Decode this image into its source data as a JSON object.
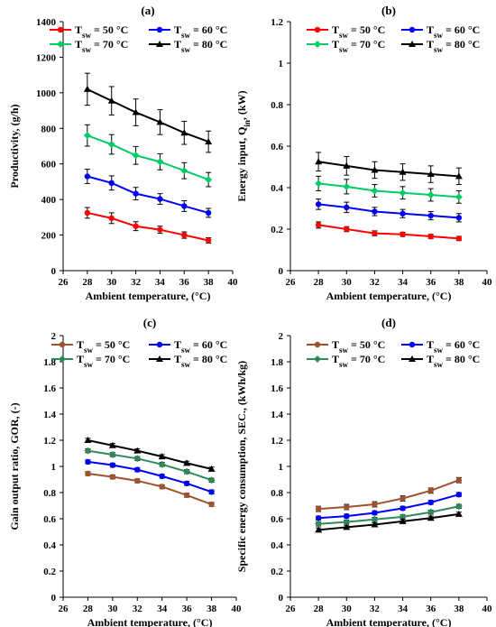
{
  "chart_data": [
    {
      "type": "line",
      "title": "(a)",
      "xlabel": "Ambient temperature, (°C)",
      "ylabel": "Productivity, (g/h)",
      "xlim": [
        26,
        40
      ],
      "ylim": [
        0,
        1400
      ],
      "xticks": [
        26,
        28,
        30,
        32,
        34,
        36,
        38,
        40
      ],
      "yticks": [
        0,
        200,
        400,
        600,
        800,
        1000,
        1200,
        1400
      ],
      "error_bars": true,
      "legend": "top",
      "x": [
        28,
        30,
        32,
        34,
        36,
        38
      ],
      "series": [
        {
          "name": "T_sw = 50 °C",
          "sub": "sw",
          "label": " = 50 °C",
          "color": "#ff0000",
          "marker": "circle",
          "values": [
            325,
            295,
            250,
            230,
            200,
            170
          ],
          "errors": [
            30,
            30,
            25,
            20,
            18,
            15
          ]
        },
        {
          "name": "T_sw = 60 °C",
          "sub": "sw",
          "label": " = 60 °C",
          "color": "#0000ff",
          "marker": "circle",
          "values": [
            530,
            493,
            433,
            403,
            363,
            325
          ],
          "errors": [
            40,
            40,
            35,
            30,
            30,
            25
          ]
        },
        {
          "name": "T_sw = 70 °C",
          "sub": "sw",
          "label": " = 70 °C",
          "color": "#00cc66",
          "marker": "diamond",
          "values": [
            760,
            710,
            648,
            612,
            562,
            512
          ],
          "errors": [
            60,
            55,
            50,
            45,
            45,
            40
          ]
        },
        {
          "name": "T_sw = 80 °C",
          "sub": "sw",
          "label": " = 80 °C",
          "color": "#000000",
          "marker": "triangle",
          "values": [
            1020,
            955,
            890,
            835,
            775,
            725
          ],
          "errors": [
            90,
            80,
            75,
            70,
            65,
            60
          ]
        }
      ]
    },
    {
      "type": "line",
      "title": "(b)",
      "xlabel": "Ambient temperature, (°C)",
      "ylabel": "Energy input, Q",
      "ylabel_sub": "in",
      "ylabel_suffix": ", (kW)",
      "xlim": [
        26,
        40
      ],
      "ylim": [
        0,
        1.2
      ],
      "xticks": [
        26,
        28,
        30,
        32,
        34,
        36,
        38,
        40
      ],
      "yticks": [
        0,
        0.2,
        0.4,
        0.6,
        0.8,
        1,
        1.2
      ],
      "error_bars": true,
      "legend": "top",
      "x": [
        28,
        30,
        32,
        34,
        36,
        38
      ],
      "series": [
        {
          "name": "T_sw = 50 °C",
          "sub": "sw",
          "label": " = 50 °C",
          "color": "#ff0000",
          "marker": "circle",
          "values": [
            0.22,
            0.2,
            0.18,
            0.175,
            0.165,
            0.155
          ],
          "errors": [
            0.015,
            0.012,
            0.012,
            0.01,
            0.01,
            0.01
          ]
        },
        {
          "name": "T_sw = 60 °C",
          "sub": "sw",
          "label": " = 60 °C",
          "color": "#0000ff",
          "marker": "circle",
          "values": [
            0.32,
            0.305,
            0.285,
            0.275,
            0.265,
            0.255
          ],
          "errors": [
            0.025,
            0.025,
            0.02,
            0.02,
            0.02,
            0.02
          ]
        },
        {
          "name": "T_sw = 70 °C",
          "sub": "sw",
          "label": " = 70 °C",
          "color": "#00cc66",
          "marker": "diamond",
          "values": [
            0.42,
            0.405,
            0.385,
            0.375,
            0.365,
            0.355
          ],
          "errors": [
            0.035,
            0.035,
            0.03,
            0.03,
            0.03,
            0.03
          ]
        },
        {
          "name": "T_sw = 80 °C",
          "sub": "sw",
          "label": " = 80 °C",
          "color": "#000000",
          "marker": "triangle",
          "values": [
            0.525,
            0.505,
            0.485,
            0.475,
            0.465,
            0.455
          ],
          "errors": [
            0.045,
            0.045,
            0.04,
            0.04,
            0.04,
            0.04
          ]
        }
      ]
    },
    {
      "type": "line",
      "title": "(c)",
      "xlabel": "Ambient temperature, (°C)",
      "ylabel": "Gain output ratio, GOR, (-)",
      "xlim": [
        26,
        40
      ],
      "ylim": [
        0,
        2
      ],
      "xticks": [
        26,
        28,
        30,
        32,
        34,
        36,
        38,
        40
      ],
      "yticks": [
        0,
        0.2,
        0.4,
        0.6,
        0.8,
        1,
        1.2,
        1.4,
        1.6,
        1.8,
        2
      ],
      "error_bars": true,
      "legend": "top",
      "x": [
        28,
        30,
        32,
        34,
        36,
        38
      ],
      "series": [
        {
          "name": "T_sw = 50 °C",
          "sub": "sw",
          "label": " = 50 °C",
          "color": "#a0522d",
          "marker": "circle",
          "values": [
            0.945,
            0.92,
            0.89,
            0.845,
            0.78,
            0.71
          ],
          "errors": [
            0.015,
            0.015,
            0.015,
            0.015,
            0.015,
            0.015
          ]
        },
        {
          "name": "T_sw = 60 °C",
          "sub": "sw",
          "label": " = 60 °C",
          "color": "#0000ff",
          "marker": "circle",
          "values": [
            1.035,
            1.01,
            0.975,
            0.925,
            0.87,
            0.805
          ],
          "errors": [
            0.015,
            0.015,
            0.015,
            0.015,
            0.015,
            0.015
          ]
        },
        {
          "name": "T_sw = 70 °C",
          "sub": "sw",
          "label": " = 70 °C",
          "color": "#2e8b57",
          "marker": "diamond",
          "values": [
            1.12,
            1.09,
            1.06,
            1.015,
            0.96,
            0.895
          ],
          "errors": [
            0.015,
            0.015,
            0.015,
            0.015,
            0.015,
            0.015
          ]
        },
        {
          "name": "T_sw = 80 °C",
          "sub": "sw",
          "label": " = 80 °C",
          "color": "#000000",
          "marker": "triangle",
          "values": [
            1.2,
            1.16,
            1.12,
            1.075,
            1.025,
            0.98
          ],
          "errors": [
            0.015,
            0.015,
            0.015,
            0.015,
            0.015,
            0.015
          ]
        }
      ]
    },
    {
      "type": "line",
      "title": "(d)",
      "xlabel": "Ambient temperature, (°C)",
      "ylabel": "Specific energy consumption, SEC., (kWh/kg)",
      "xlim": [
        26,
        40
      ],
      "ylim": [
        0,
        2
      ],
      "xticks": [
        26,
        28,
        30,
        32,
        34,
        36,
        38,
        40
      ],
      "yticks": [
        0,
        0.2,
        0.4,
        0.6,
        0.8,
        1,
        1.2,
        1.4,
        1.6,
        1.8,
        2
      ],
      "error_bars": true,
      "legend": "top",
      "x": [
        28,
        30,
        32,
        34,
        36,
        38
      ],
      "series": [
        {
          "name": "T_sw = 50 °C",
          "sub": "sw",
          "label": " = 50 °C",
          "color": "#a0522d",
          "marker": "circle",
          "values": [
            0.675,
            0.69,
            0.71,
            0.755,
            0.815,
            0.895
          ],
          "errors": [
            0.02,
            0.02,
            0.02,
            0.02,
            0.02,
            0.02
          ]
        },
        {
          "name": "T_sw = 60 °C",
          "sub": "sw",
          "label": " = 60 °C",
          "color": "#0000ff",
          "marker": "circle",
          "values": [
            0.605,
            0.62,
            0.645,
            0.68,
            0.725,
            0.785
          ],
          "errors": [
            0.015,
            0.015,
            0.015,
            0.015,
            0.015,
            0.015
          ]
        },
        {
          "name": "T_sw = 70 °C",
          "sub": "sw",
          "label": " = 70 °C",
          "color": "#2e8b57",
          "marker": "diamond",
          "values": [
            0.56,
            0.575,
            0.595,
            0.615,
            0.65,
            0.695
          ],
          "errors": [
            0.015,
            0.015,
            0.015,
            0.015,
            0.015,
            0.015
          ]
        },
        {
          "name": "T_sw = 80 °C",
          "sub": "sw",
          "label": " = 80 °C",
          "color": "#000000",
          "marker": "triangle",
          "values": [
            0.515,
            0.535,
            0.555,
            0.58,
            0.605,
            0.635
          ],
          "errors": [
            0.015,
            0.015,
            0.015,
            0.015,
            0.015,
            0.015
          ]
        }
      ]
    }
  ]
}
